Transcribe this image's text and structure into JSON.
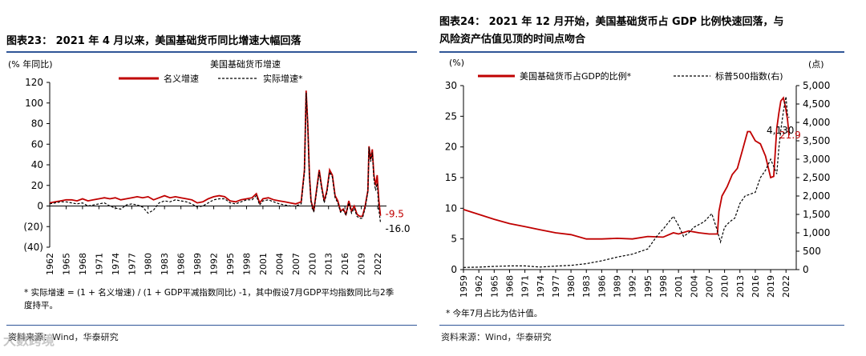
{
  "left": {
    "title": "图表23：  2021 年 4 月以来，美国基础货币同比增速大幅回落",
    "note": "* 实际增速 = (1 + 名义增速) / (1 + GDP平减指数同比) -1，其中假设7月GDP平均指数同比与2季度持平。",
    "source": "资料来源：Wind，华泰研究"
  },
  "right": {
    "title_line1": "图表24：  2021 年 12 月开始，美国基础货币占 GDP 比例快速回落，与",
    "title_line2": "风险资产估值见顶的时间点吻合",
    "note": "* 今年7月占比为估计值。",
    "source": "资料来源：Wind，华泰研究"
  },
  "watermark": "大數跨境",
  "colors": {
    "accent": "#c00000",
    "rule": "#2f5597",
    "axis": "#000000"
  },
  "chart_data": [
    {
      "type": "line",
      "title": "美国基础货币增速",
      "ylabel": "(% 年同比)",
      "ylim": [
        -40,
        120
      ],
      "yticks": [
        -40,
        -20,
        0,
        20,
        40,
        60,
        80,
        100,
        120
      ],
      "ytick_labels": [
        "(40)",
        "(20)",
        "0",
        "20",
        "40",
        "60",
        "80",
        "100",
        "120"
      ],
      "xlim": [
        1962,
        2023.6
      ],
      "xticks": [
        1962,
        1965,
        1968,
        1971,
        1974,
        1977,
        1980,
        1983,
        1986,
        1989,
        1992,
        1995,
        1998,
        2001,
        2004,
        2007,
        2010,
        2013,
        2016,
        2019,
        2022
      ],
      "series": [
        {
          "name": "名义增速",
          "style": "solid",
          "color": "#c00000",
          "x": [
            1962,
            1963,
            1964,
            1965,
            1966,
            1967,
            1968,
            1969,
            1970,
            1971,
            1972,
            1973,
            1974,
            1975,
            1976,
            1977,
            1978,
            1979,
            1980,
            1981,
            1982,
            1983,
            1984,
            1985,
            1986,
            1987,
            1988,
            1989,
            1990,
            1991,
            1992,
            1993,
            1994,
            1995,
            1996,
            1997,
            1998,
            1999,
            1999.8,
            2000.4,
            2001,
            2002,
            2003,
            2004,
            2005,
            2006,
            2007,
            2008,
            2008.6,
            2008.9,
            2009.2,
            2009.5,
            2009.8,
            2010.3,
            2010.8,
            2011.3,
            2011.7,
            2012.2,
            2012.7,
            2013.2,
            2013.7,
            2014.2,
            2014.7,
            2015.2,
            2015.7,
            2016.2,
            2016.7,
            2017.2,
            2017.7,
            2018.2,
            2018.7,
            2019.2,
            2019.7,
            2020.2,
            2020.4,
            2020.7,
            2021,
            2021.3,
            2021.6,
            2021.9,
            2022.2,
            2022.5
          ],
          "y": [
            3,
            4,
            5,
            6,
            6,
            5,
            7,
            5,
            6,
            7,
            8,
            7,
            8,
            6,
            7,
            8,
            9,
            8,
            9,
            6,
            8,
            10,
            8,
            9,
            8,
            7,
            6,
            3,
            4,
            7,
            9,
            10,
            9,
            5,
            4,
            6,
            7,
            8,
            12,
            3,
            7,
            8,
            6,
            5,
            4,
            3,
            2,
            4,
            35,
            112,
            80,
            30,
            5,
            -5,
            15,
            35,
            20,
            5,
            15,
            35,
            30,
            10,
            5,
            -5,
            -3,
            -8,
            5,
            -5,
            0,
            -8,
            -10,
            -10,
            0,
            15,
            58,
            45,
            55,
            30,
            20,
            30,
            5,
            -9.5
          ]
        },
        {
          "name": "实际增速*",
          "style": "dashed",
          "color": "#000000",
          "x": [
            1962,
            1963,
            1964,
            1965,
            1966,
            1967,
            1968,
            1969,
            1970,
            1971,
            1972,
            1973,
            1974,
            1975,
            1976,
            1977,
            1978,
            1979,
            1980,
            1981,
            1982,
            1983,
            1984,
            1985,
            1986,
            1987,
            1988,
            1989,
            1990,
            1991,
            1992,
            1993,
            1994,
            1995,
            1996,
            1997,
            1998,
            1999,
            1999.8,
            2000.4,
            2001,
            2002,
            2003,
            2004,
            2005,
            2006,
            2007,
            2008,
            2008.6,
            2008.9,
            2009.2,
            2009.5,
            2009.8,
            2010.3,
            2010.8,
            2011.3,
            2011.7,
            2012.2,
            2012.7,
            2013.2,
            2013.7,
            2014.2,
            2014.7,
            2015.2,
            2015.7,
            2016.2,
            2016.7,
            2017.2,
            2017.7,
            2018.2,
            2018.7,
            2019.2,
            2019.7,
            2020.2,
            2020.4,
            2020.7,
            2021,
            2021.3,
            2021.6,
            2021.9,
            2022.2,
            2022.5
          ],
          "y": [
            2,
            3,
            4,
            4,
            3,
            2,
            3,
            0,
            1,
            2,
            3,
            0,
            -2,
            -3,
            1,
            2,
            1,
            -1,
            -7,
            -4,
            3,
            5,
            4,
            6,
            5,
            4,
            2,
            -1,
            0,
            3,
            6,
            7,
            7,
            3,
            2,
            4,
            6,
            6,
            10,
            1,
            5,
            6,
            4,
            2,
            1,
            0,
            0,
            2,
            33,
            110,
            78,
            28,
            4,
            -6,
            13,
            33,
            18,
            3,
            13,
            33,
            28,
            8,
            3,
            -6,
            -4,
            -9,
            3,
            -7,
            -2,
            -10,
            -12,
            -12,
            -2,
            14,
            57,
            43,
            52,
            26,
            15,
            22,
            -4,
            -16.0
          ]
        }
      ],
      "annotations": [
        {
          "text": "-9.5",
          "x": 2022.5,
          "y": -9.5,
          "color": "#c00000"
        },
        {
          "text": "-16.0",
          "x": 2022.5,
          "y": -16.0,
          "color": "#000000"
        }
      ],
      "legend": "top-center"
    },
    {
      "type": "line",
      "ylabel": "(%)",
      "y2label": "(点)",
      "ylim": [
        0,
        30
      ],
      "yticks": [
        0,
        5,
        10,
        15,
        20,
        25,
        30
      ],
      "y2lim": [
        0,
        5000
      ],
      "y2ticks": [
        0,
        500,
        1000,
        1500,
        2000,
        2500,
        3000,
        3500,
        4000,
        4500,
        5000
      ],
      "y2tick_labels": [
        "0",
        "500",
        "1,000",
        "1,500",
        "2,000",
        "2,500",
        "3,000",
        "3,500",
        "4,000",
        "4,500",
        "5,000"
      ],
      "xlim": [
        1959,
        2024
      ],
      "xticks": [
        1959,
        1962,
        1965,
        1968,
        1971,
        1974,
        1977,
        1980,
        1983,
        1986,
        1989,
        1992,
        1995,
        1998,
        2001,
        2004,
        2007,
        2010,
        2013,
        2016,
        2019,
        2022
      ],
      "series": [
        {
          "name": "美国基础货币占GDP的比例*",
          "axis": "left",
          "style": "solid",
          "color": "#c00000",
          "x": [
            1959,
            1962,
            1965,
            1968,
            1971,
            1974,
            1977,
            1980,
            1983,
            1986,
            1989,
            1992,
            1995,
            1998,
            2000,
            2001,
            2003,
            2005,
            2007,
            2008.6,
            2008.9,
            2009.5,
            2010.5,
            2011.5,
            2012.5,
            2013.5,
            2014.5,
            2015,
            2016,
            2017,
            2018,
            2019,
            2019.6,
            2020.2,
            2020.6,
            2021,
            2021.5,
            2021.9,
            2022.3,
            2022.6
          ],
          "y": [
            9.8,
            9,
            8.2,
            7.5,
            7,
            6.5,
            6,
            5.7,
            5,
            5,
            5.1,
            5,
            5.4,
            5.3,
            6,
            5.8,
            6.3,
            6,
            5.8,
            5.8,
            9.5,
            12,
            13.5,
            15.5,
            16.5,
            19.5,
            22.5,
            22.5,
            21,
            20.5,
            18.5,
            15,
            15.2,
            23,
            25.5,
            27.5,
            28,
            26.5,
            24.5,
            21.9
          ]
        },
        {
          "name": "标普500指数(右)",
          "axis": "right",
          "style": "dashed",
          "color": "#000000",
          "x": [
            1959,
            1962,
            1965,
            1968,
            1971,
            1974,
            1977,
            1980,
            1983,
            1986,
            1989,
            1992,
            1995,
            1997,
            1998,
            2000,
            2001,
            2002,
            2003,
            2004,
            2006,
            2007.5,
            2008.5,
            2009.2,
            2010,
            2011,
            2012,
            2013,
            2014,
            2015,
            2016,
            2017,
            2018,
            2019,
            2020.2,
            2020.6,
            2021,
            2021.5,
            2022,
            2022.3,
            2022.6
          ],
          "y": [
            58,
            68,
            88,
            100,
            100,
            70,
            95,
            115,
            160,
            240,
            340,
            420,
            560,
            950,
            1100,
            1450,
            1200,
            900,
            1000,
            1150,
            1300,
            1520,
            1100,
            750,
            1150,
            1300,
            1400,
            1800,
            2000,
            2050,
            2100,
            2500,
            2700,
            3000,
            2600,
            3300,
            3800,
            4300,
            4700,
            4200,
            4130
          ]
        }
      ],
      "annotations": [
        {
          "text": "21.9",
          "x": 2022.6,
          "y": 21.9,
          "axis": "left",
          "color": "#c00000"
        },
        {
          "text": "4,130",
          "x": 2022.6,
          "y": 4130,
          "axis": "right",
          "color": "#000000"
        }
      ],
      "legend": "top"
    }
  ]
}
